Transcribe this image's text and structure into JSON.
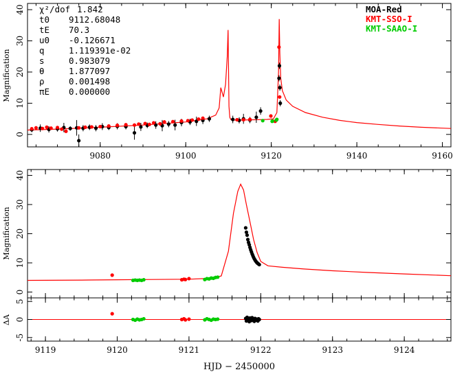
{
  "chart_data": [
    {
      "type": "scatter",
      "panel": "top",
      "ylabel": "Magnification",
      "xlim": [
        9063,
        9162
      ],
      "ylim": [
        -4,
        42
      ],
      "xticks": [
        9080,
        9100,
        9120,
        9140,
        9160
      ],
      "yticks": [
        0,
        10,
        20,
        30,
        40
      ],
      "params": [
        {
          "name": "χ²/dof",
          "value": "1.842"
        },
        {
          "name": "t0",
          "value": "9112.68048"
        },
        {
          "name": "tE",
          "value": "70.3"
        },
        {
          "name": "u0",
          "value": "-0.126671"
        },
        {
          "name": "q",
          "value": "1.119391e-02"
        },
        {
          "name": "s",
          "value": "0.983079"
        },
        {
          "name": "θ",
          "value": "1.877097"
        },
        {
          "name": "ρ",
          "value": "0.001498"
        },
        {
          "name": "πE",
          "value": "0.000000"
        }
      ],
      "legend": [
        {
          "name": "MOA-Red",
          "color": "#000000"
        },
        {
          "name": "KMT-SSO-I",
          "color": "#ff0000"
        },
        {
          "name": "KMT-SAAO-I",
          "color": "#00cc00"
        }
      ],
      "model": {
        "color": "#ff0000",
        "x": [
          9063,
          9070,
          9080,
          9090,
          9100,
          9105,
          9107,
          9107.8,
          9108.2,
          9108.8,
          9109.3,
          9109.7,
          9109.9,
          9110.0,
          9110.1,
          9110.3,
          9110.5,
          9111,
          9113,
          9116,
          9119,
          9120.5,
          9121.3,
          9121.7,
          9121.85,
          9122.0,
          9122.2,
          9122.6,
          9123.5,
          9125,
          9128,
          9132,
          9136,
          9140,
          9145,
          9150,
          9155,
          9162
        ],
        "y": [
          1.4,
          1.7,
          2.3,
          3.0,
          4.0,
          5.0,
          6.2,
          8.5,
          15.0,
          12.0,
          16.0,
          25.0,
          33.5,
          22.0,
          9.0,
          5.5,
          4.8,
          4.6,
          4.6,
          4.7,
          4.8,
          5.0,
          7.0,
          20.0,
          37.0,
          26.0,
          18.0,
          14.0,
          11.0,
          9.0,
          7.0,
          5.5,
          4.5,
          3.8,
          3.2,
          2.7,
          2.3,
          1.9
        ]
      },
      "series": [
        {
          "name": "MOA-Red",
          "color": "#000000",
          "points": [
            [
              9064,
              1.5,
              0.8
            ],
            [
              9066,
              2.0,
              1.2
            ],
            [
              9068,
              1.6,
              1.0
            ],
            [
              9070,
              1.8,
              0.9
            ],
            [
              9071.5,
              2.2,
              1.5
            ],
            [
              9073,
              1.9,
              0.7
            ],
            [
              9074.5,
              2.1,
              2.5
            ],
            [
              9075,
              -2.0,
              2.0
            ],
            [
              9076,
              2.0,
              1.0
            ],
            [
              9077.5,
              2.3,
              0.9
            ],
            [
              9079,
              2.0,
              1.0
            ],
            [
              9080.5,
              2.5,
              1.1
            ],
            [
              9082,
              2.2,
              0.8
            ],
            [
              9084,
              2.6,
              1.0
            ],
            [
              9086,
              2.5,
              0.9
            ],
            [
              9088,
              0.5,
              2.2
            ],
            [
              9089.5,
              2.4,
              1.3
            ],
            [
              9091,
              2.9,
              0.9
            ],
            [
              9093,
              3.0,
              1.2
            ],
            [
              9094.5,
              2.8,
              1.8
            ],
            [
              9096,
              3.3,
              1.0
            ],
            [
              9097.5,
              3.0,
              1.7
            ],
            [
              9099,
              3.8,
              1.2
            ],
            [
              9101,
              4.0,
              1.0
            ],
            [
              9102.5,
              4.2,
              1.5
            ],
            [
              9104,
              4.5,
              1.2
            ],
            [
              9105.5,
              5.0,
              1.0
            ],
            [
              9111,
              4.8,
              1.2
            ],
            [
              9112.5,
              4.5,
              1.0
            ],
            [
              9113.5,
              5.0,
              1.6
            ],
            [
              9115,
              4.6,
              1.0
            ],
            [
              9116.5,
              5.5,
              1.8
            ],
            [
              9117.5,
              7.5,
              1.2
            ],
            [
              9121.8,
              18.0,
              1.0
            ],
            [
              9121.9,
              22.0,
              1.0
            ],
            [
              9122.0,
              15.0,
              1.0
            ],
            [
              9122.1,
              10.0,
              1.0
            ]
          ]
        },
        {
          "name": "KMT-SSO-I",
          "color": "#ff0000",
          "points": [
            [
              9064,
              1.8,
              0.3
            ],
            [
              9065,
              2.1,
              0.3
            ],
            [
              9066.5,
              1.9,
              0.3
            ],
            [
              9067.5,
              2.3,
              0.3
            ],
            [
              9068.5,
              2.0,
              0.3
            ],
            [
              9070,
              2.2,
              0.3
            ],
            [
              9071,
              1.7,
              0.3
            ],
            [
              9072,
              1.0,
              0.3
            ],
            [
              9075,
              2.1,
              0.3
            ],
            [
              9076.5,
              2.3,
              0.3
            ],
            [
              9078,
              2.4,
              0.3
            ],
            [
              9080,
              2.5,
              0.3
            ],
            [
              9082,
              2.7,
              0.3
            ],
            [
              9084,
              2.9,
              0.3
            ],
            [
              9086,
              3.1,
              0.3
            ],
            [
              9088,
              3.0,
              0.3
            ],
            [
              9089,
              3.3,
              0.3
            ],
            [
              9090.5,
              3.5,
              0.3
            ],
            [
              9091.5,
              3.2,
              0.3
            ],
            [
              9092.5,
              3.7,
              0.3
            ],
            [
              9094,
              3.4,
              0.3
            ],
            [
              9095,
              4.0,
              0.3
            ],
            [
              9097,
              4.1,
              0.3
            ],
            [
              9099,
              4.3,
              0.3
            ],
            [
              9100.5,
              4.4,
              0.3
            ],
            [
              9101.5,
              4.6,
              0.3
            ],
            [
              9103,
              4.9,
              0.3
            ],
            [
              9104,
              5.2,
              0.3
            ],
            [
              9112,
              4.7,
              0.3
            ],
            [
              9113.5,
              4.7,
              0.3
            ],
            [
              9115,
              4.8,
              0.3
            ],
            [
              9119.9,
              5.9,
              0.3
            ],
            [
              9120.9,
              4.2,
              0.3
            ],
            [
              9121.8,
              28.0,
              0.3
            ],
            [
              9121.95,
              12.0,
              0.3
            ]
          ]
        },
        {
          "name": "KMT-SAAO-I",
          "color": "#00cc00",
          "points": [
            [
              9118.0,
              4.4,
              0.3
            ],
            [
              9120.2,
              4.2,
              0.3
            ],
            [
              9120.3,
              4.3,
              0.3
            ],
            [
              9121.2,
              4.6,
              0.3
            ],
            [
              9121.3,
              4.8,
              0.3
            ]
          ]
        }
      ]
    },
    {
      "type": "scatter",
      "panel": "middle",
      "ylabel": "Magnification",
      "xlim": [
        9118.75,
        9124.65
      ],
      "ylim": [
        -2,
        42
      ],
      "yticks": [
        0,
        10,
        20,
        30,
        40
      ],
      "model": {
        "color": "#ff0000",
        "x": [
          9118.75,
          9119.5,
          9120.0,
          9120.5,
          9121.0,
          9121.3,
          9121.45,
          9121.55,
          9121.62,
          9121.68,
          9121.72,
          9121.76,
          9121.8,
          9121.85,
          9121.9,
          9121.95,
          9122.0,
          9122.1,
          9122.3,
          9122.6,
          9123.0,
          9123.5,
          9124.0,
          9124.65
        ],
        "y": [
          4.0,
          4.1,
          4.2,
          4.3,
          4.4,
          4.7,
          5.5,
          14.0,
          27.0,
          34.5,
          37.0,
          35.0,
          30.0,
          24.0,
          18.0,
          13.5,
          10.5,
          9.0,
          8.5,
          7.9,
          7.3,
          6.7,
          6.2,
          5.6
        ]
      },
      "series": [
        {
          "name": "KMT-SSO-I",
          "color": "#ff0000",
          "points": [
            [
              9119.93,
              5.8
            ],
            [
              9120.9,
              4.2
            ],
            [
              9120.93,
              4.4
            ],
            [
              9120.95,
              4.3
            ],
            [
              9121.0,
              4.6
            ]
          ]
        },
        {
          "name": "KMT-SAAO-I",
          "color": "#00cc00",
          "points": [
            [
              9120.22,
              4.0
            ],
            [
              9120.25,
              4.1
            ],
            [
              9120.28,
              4.0
            ],
            [
              9120.31,
              4.1
            ],
            [
              9120.34,
              4.0
            ],
            [
              9120.37,
              4.2
            ],
            [
              9121.22,
              4.3
            ],
            [
              9121.25,
              4.6
            ],
            [
              9121.28,
              4.5
            ],
            [
              9121.31,
              4.8
            ],
            [
              9121.34,
              4.7
            ],
            [
              9121.37,
              5.0
            ],
            [
              9121.4,
              5.1
            ]
          ]
        },
        {
          "name": "MOA-Red",
          "color": "#000000",
          "points": [
            [
              9121.79,
              22.0
            ],
            [
              9121.8,
              20.5
            ],
            [
              9121.81,
              19.5
            ],
            [
              9121.82,
              18.0
            ],
            [
              9121.83,
              17.0
            ],
            [
              9121.84,
              16.2
            ],
            [
              9121.85,
              15.3
            ],
            [
              9121.86,
              14.5
            ],
            [
              9121.87,
              13.8
            ],
            [
              9121.88,
              13.1
            ],
            [
              9121.89,
              12.5
            ],
            [
              9121.9,
              11.9
            ],
            [
              9121.91,
              11.4
            ],
            [
              9121.92,
              11.0
            ],
            [
              9121.93,
              10.6
            ],
            [
              9121.94,
              10.3
            ],
            [
              9121.95,
              10.0
            ],
            [
              9121.96,
              9.8
            ],
            [
              9121.97,
              9.6
            ],
            [
              9121.98,
              9.4
            ]
          ]
        }
      ]
    },
    {
      "type": "scatter",
      "panel": "residual",
      "ylabel": "ΔA",
      "xlabel": "HJD − 2450000",
      "xlim": [
        9118.75,
        9124.65
      ],
      "ylim": [
        -6,
        6
      ],
      "yticks": [
        -5,
        0,
        5
      ],
      "xticks": [
        9119,
        9120,
        9121,
        9122,
        9123,
        9124
      ],
      "series": [
        {
          "name": "KMT-SSO-I",
          "color": "#ff0000",
          "points": [
            [
              9119.93,
              1.6
            ],
            [
              9120.9,
              0.0
            ],
            [
              9120.93,
              0.2
            ],
            [
              9120.95,
              -0.1
            ],
            [
              9121.0,
              0.1
            ]
          ]
        },
        {
          "name": "KMT-SAAO-I",
          "color": "#00cc00",
          "points": [
            [
              9120.22,
              0.0
            ],
            [
              9120.25,
              -0.2
            ],
            [
              9120.28,
              0.1
            ],
            [
              9120.31,
              -0.1
            ],
            [
              9120.34,
              0.0
            ],
            [
              9120.37,
              0.2
            ],
            [
              9121.22,
              -0.1
            ],
            [
              9121.25,
              0.2
            ],
            [
              9121.28,
              0.0
            ],
            [
              9121.31,
              -0.2
            ],
            [
              9121.34,
              0.1
            ],
            [
              9121.37,
              0.0
            ],
            [
              9121.4,
              0.1
            ]
          ]
        },
        {
          "name": "MOA-Red",
          "color": "#000000",
          "points": [
            [
              9121.79,
              0.3
            ],
            [
              9121.8,
              -0.4
            ],
            [
              9121.81,
              0.6
            ],
            [
              9121.82,
              -0.2
            ],
            [
              9121.83,
              0.1
            ],
            [
              9121.84,
              -0.6
            ],
            [
              9121.85,
              0.4
            ],
            [
              9121.86,
              0.0
            ],
            [
              9121.87,
              -0.3
            ],
            [
              9121.88,
              0.5
            ],
            [
              9121.89,
              -0.1
            ],
            [
              9121.9,
              0.2
            ],
            [
              9121.91,
              -0.5
            ],
            [
              9121.92,
              0.3
            ],
            [
              9121.93,
              0.0
            ],
            [
              9121.94,
              -0.2
            ],
            [
              9121.95,
              0.1
            ],
            [
              9121.96,
              -0.4
            ],
            [
              9121.97,
              0.2
            ],
            [
              9121.98,
              0.0
            ]
          ]
        }
      ]
    }
  ]
}
